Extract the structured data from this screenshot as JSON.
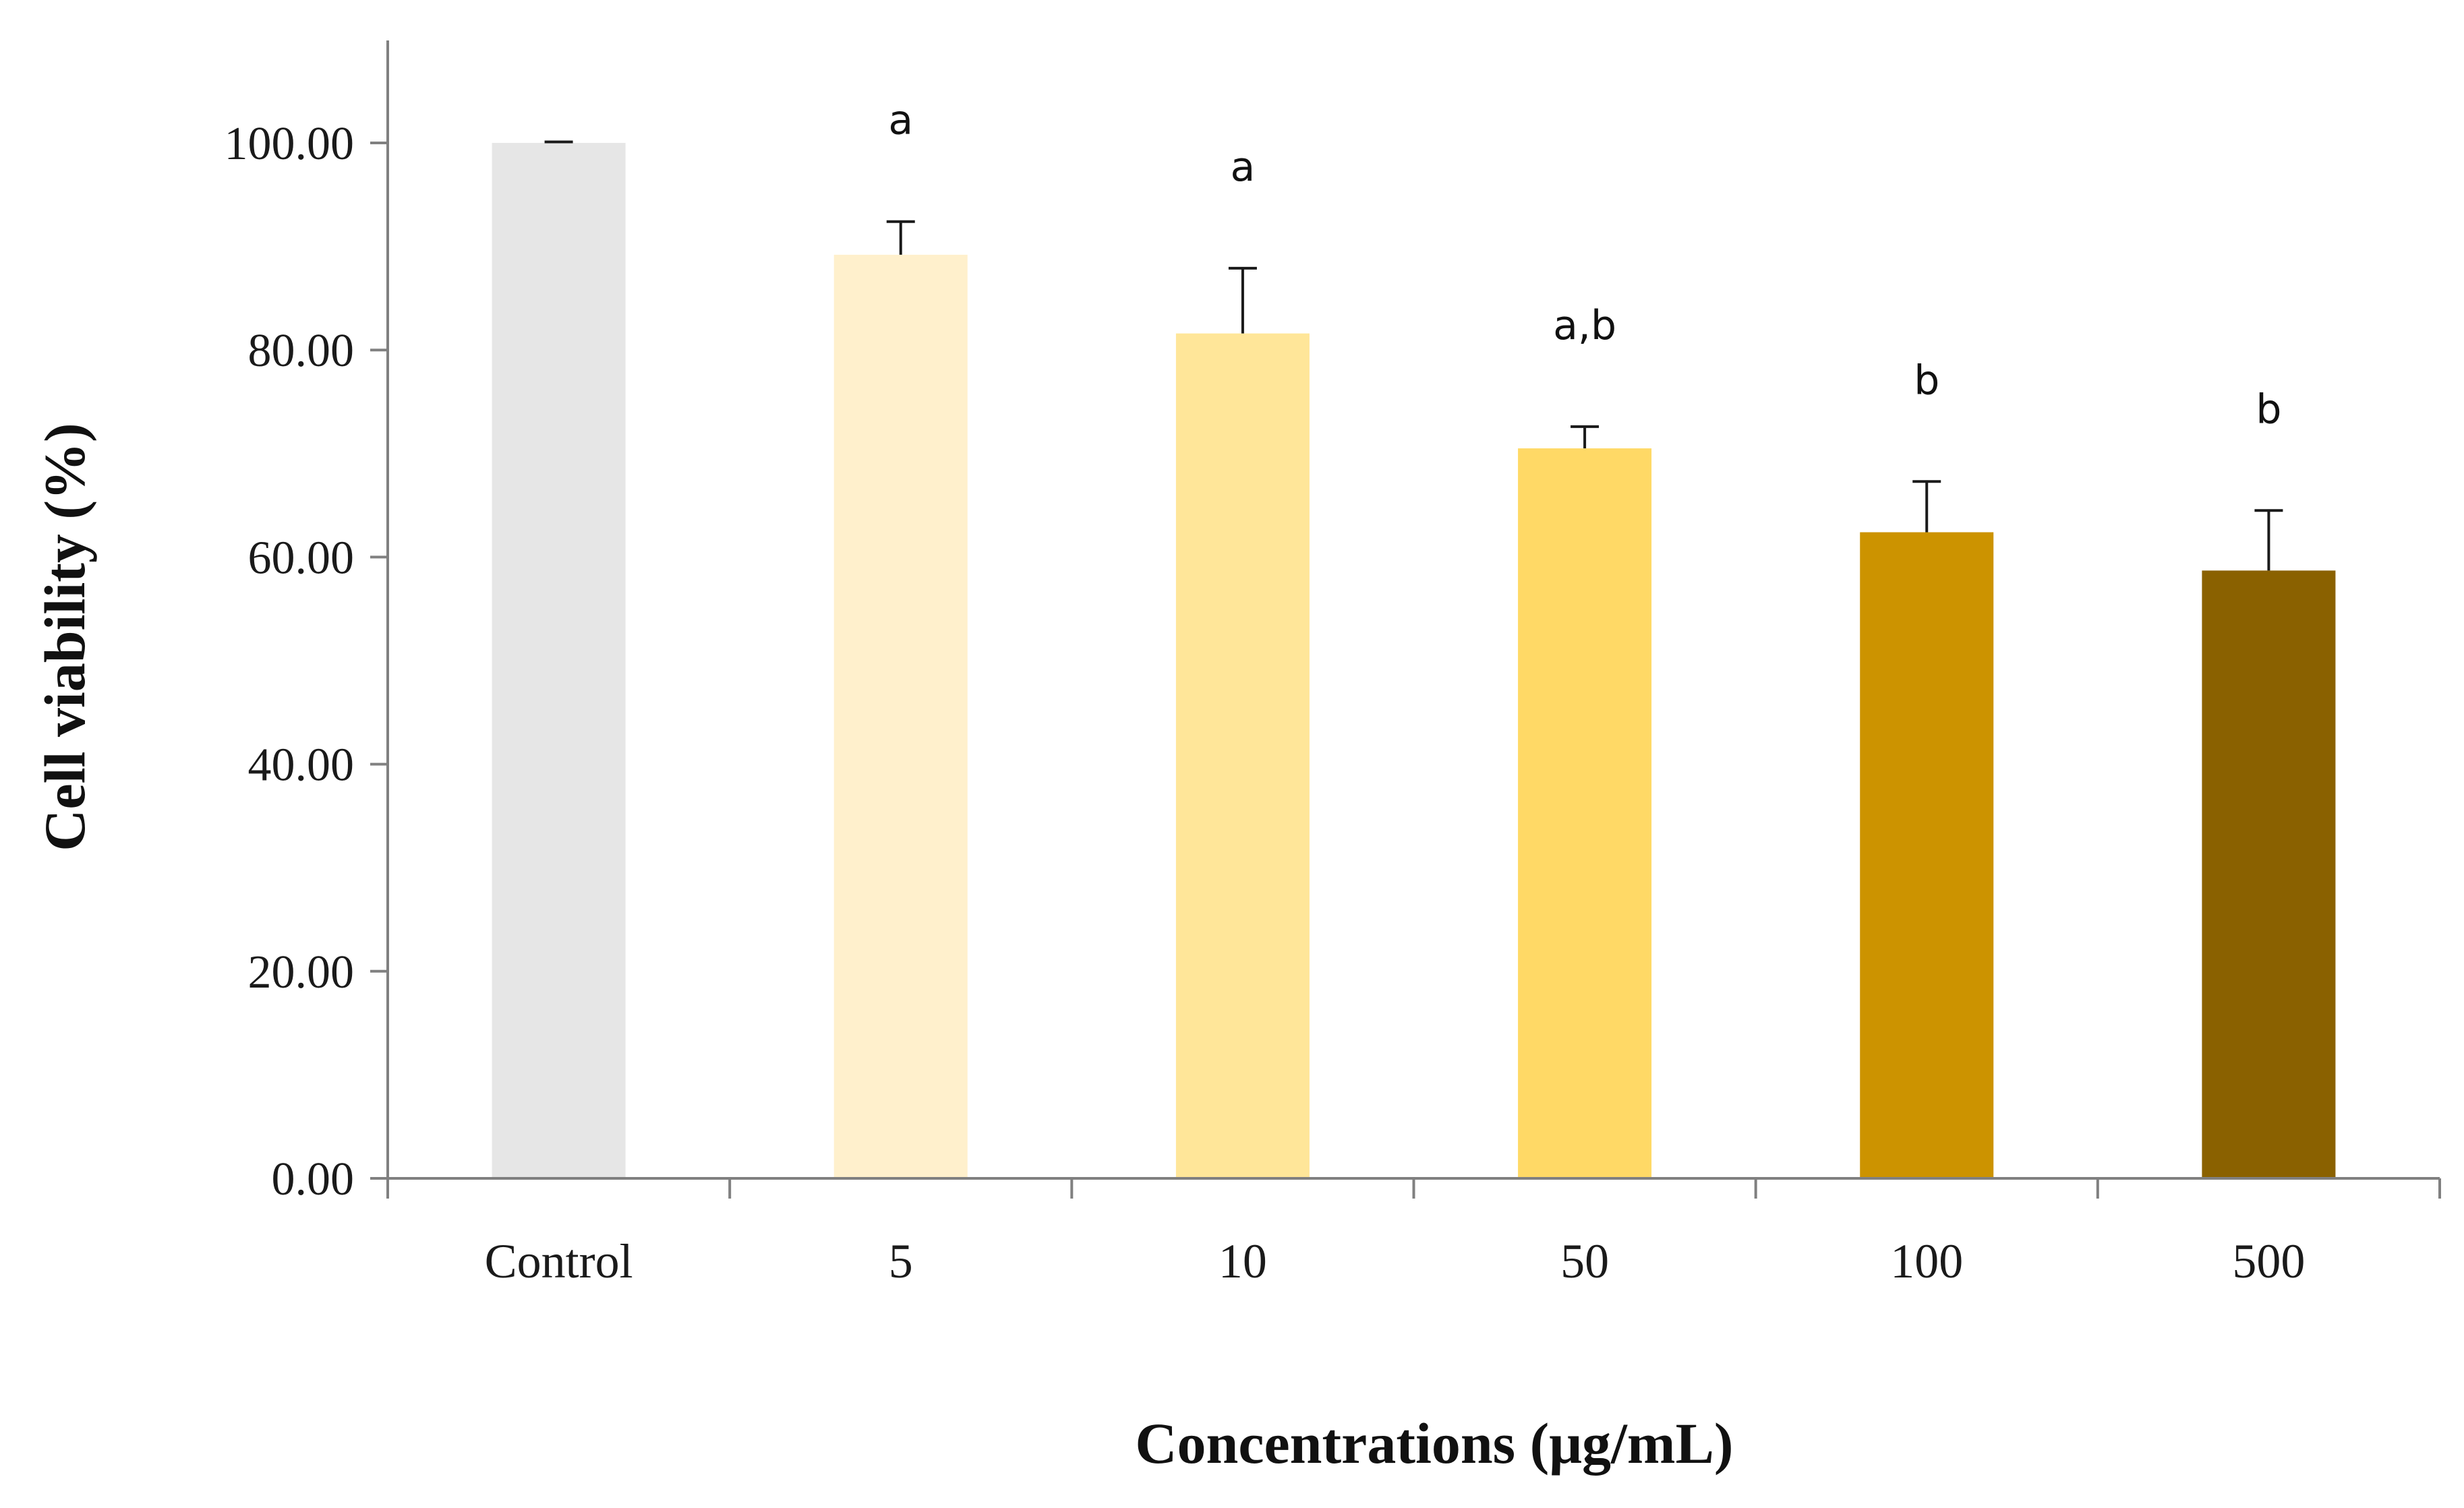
{
  "chart_data": {
    "type": "bar",
    "title": "",
    "xlabel": "Concentrations (μg/mL)",
    "ylabel": "Cell viability (%)",
    "ylim": [
      0,
      110
    ],
    "yticks": [
      "0.00",
      "20.00",
      "40.00",
      "60.00",
      "80.00",
      "100.00"
    ],
    "categories": [
      "Control",
      "5",
      "10",
      "50",
      "100",
      "500"
    ],
    "values": [
      100.0,
      89.2,
      81.6,
      70.5,
      62.4,
      58.7
    ],
    "error": [
      0.1,
      3.2,
      6.3,
      2.1,
      4.9,
      5.8
    ],
    "significance": [
      "",
      "a",
      "a",
      "a,b",
      "b",
      "b"
    ],
    "colors": [
      "#e6e6e6",
      "#fff0cc",
      "#ffe699",
      "#ffd966",
      "#cc9300",
      "#8a6100"
    ],
    "grid": false,
    "legend": "none"
  }
}
